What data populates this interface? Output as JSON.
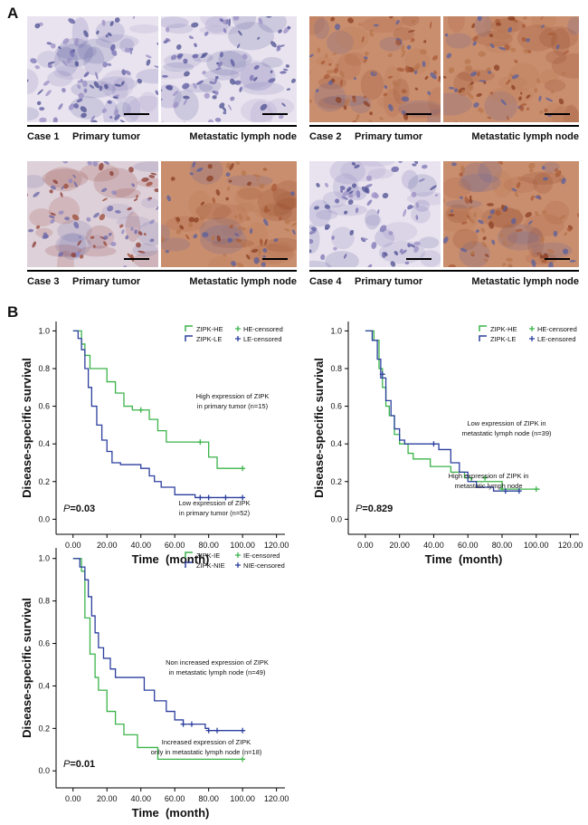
{
  "panel_a": {
    "label": "A",
    "cases": [
      {
        "label": "Case 1",
        "left": "Primary tumor",
        "right": "Metastatic lymph node"
      },
      {
        "label": "Case 2",
        "left": "Primary tumor",
        "right": "Metastatic lymph node"
      },
      {
        "label": "Case 3",
        "left": "Primary tumor",
        "right": "Metastatic lymph node"
      },
      {
        "label": "Case 4",
        "left": "Primary tumor",
        "right": "Metastatic lymph node"
      }
    ]
  },
  "panel_b": {
    "label": "B"
  },
  "chart_data": [
    {
      "type": "step",
      "xlabel": "Time  (month)",
      "ylabel": "Disease-specific survival",
      "xlim": [
        -10,
        125
      ],
      "ylim": [
        -0.08,
        1.05
      ],
      "xticks": [
        {
          "value": 0,
          "label": "0.00"
        },
        {
          "value": 20,
          "label": "20.00"
        },
        {
          "value": 40,
          "label": "40.00"
        },
        {
          "value": 60,
          "label": "60.00"
        },
        {
          "value": 80,
          "label": "80.00"
        },
        {
          "value": 100,
          "label": "100.00"
        },
        {
          "value": 120,
          "label": "120.00"
        }
      ],
      "yticks": [
        {
          "value": 0,
          "label": "0.0"
        },
        0.2,
        0.4,
        0.6,
        0.8,
        {
          "value": 1,
          "label": "1.0"
        }
      ],
      "legend": "upper right",
      "p_symbol": "P",
      "p_text": "=0.03",
      "series": [
        {
          "name": "ZIPK-HE",
          "color": "#3cb44a",
          "x": [
            0,
            5,
            7,
            10,
            20,
            25,
            30,
            35,
            45,
            50,
            55,
            80,
            85,
            100
          ],
          "values": [
            1.0,
            0.93,
            0.87,
            0.8,
            0.73,
            0.67,
            0.6,
            0.58,
            0.53,
            0.47,
            0.41,
            0.33,
            0.27,
            0.27
          ]
        },
        {
          "name": "ZIPK-LE",
          "color": "#2b3f9e",
          "x": [
            0,
            3,
            5,
            7,
            9,
            11,
            14,
            17,
            20,
            23,
            28,
            40,
            45,
            48,
            52,
            60,
            72,
            100
          ],
          "values": [
            1.0,
            0.96,
            0.9,
            0.8,
            0.7,
            0.6,
            0.5,
            0.42,
            0.36,
            0.3,
            0.29,
            0.27,
            0.23,
            0.2,
            0.17,
            0.13,
            0.115,
            0.115
          ]
        }
      ],
      "censored": [
        {
          "name": "HE-censored",
          "color": "#3cb44a",
          "x": [
            40,
            75,
            100
          ],
          "values": [
            0.58,
            0.41,
            0.27
          ]
        },
        {
          "name": "LE-censored",
          "color": "#2b3f9e",
          "x": [
            75,
            80,
            90,
            100
          ],
          "values": [
            0.115,
            0.115,
            0.115,
            0.115
          ]
        }
      ],
      "annotations": [
        {
          "lines": [
            "High expression of ZIPK",
            "in primary tumor (n=15)"
          ]
        },
        {
          "lines": [
            "Low expression of ZIPK",
            "in primary tumor (n=52)"
          ]
        }
      ]
    },
    {
      "type": "step",
      "xlabel": "Time  (month)",
      "ylabel": "Disease-specific survival",
      "xlim": [
        -10,
        125
      ],
      "ylim": [
        -0.08,
        1.05
      ],
      "xticks": [
        {
          "value": 0,
          "label": "0.00"
        },
        {
          "value": 20,
          "label": "20.00"
        },
        {
          "value": 40,
          "label": "40.00"
        },
        {
          "value": 60,
          "label": "60.00"
        },
        {
          "value": 80,
          "label": "80.00"
        },
        {
          "value": 100,
          "label": "100.00"
        },
        {
          "value": 120,
          "label": "120.00"
        }
      ],
      "yticks": [
        {
          "value": 0,
          "label": "0.0"
        },
        0.2,
        0.4,
        0.6,
        0.8,
        {
          "value": 1,
          "label": "1.0"
        }
      ],
      "legend": "upper right",
      "p_symbol": "P",
      "p_text": "=0.829",
      "series": [
        {
          "name": "ZIPK-HE",
          "color": "#3cb44a",
          "x": [
            0,
            5,
            8,
            10,
            12,
            14,
            17,
            20,
            25,
            28,
            38,
            50,
            58,
            62,
            80,
            102
          ],
          "values": [
            1.0,
            0.95,
            0.8,
            0.7,
            0.6,
            0.55,
            0.45,
            0.4,
            0.35,
            0.32,
            0.28,
            0.25,
            0.22,
            0.2,
            0.16,
            0.16
          ]
        },
        {
          "name": "ZIPK-LE",
          "color": "#2b3f9e",
          "x": [
            0,
            4,
            7,
            9,
            12,
            15,
            17,
            20,
            23,
            43,
            50,
            55,
            60,
            65,
            75,
            90
          ],
          "values": [
            1.0,
            0.95,
            0.85,
            0.75,
            0.63,
            0.55,
            0.48,
            0.42,
            0.4,
            0.37,
            0.3,
            0.25,
            0.2,
            0.17,
            0.15,
            0.15
          ]
        }
      ],
      "censored": [
        {
          "name": "HE-censored",
          "color": "#3cb44a",
          "x": [
            70,
            80,
            100
          ],
          "values": [
            0.22,
            0.16,
            0.16
          ]
        },
        {
          "name": "LE-censored",
          "color": "#2b3f9e",
          "x": [
            10,
            40,
            82,
            90
          ],
          "values": [
            0.77,
            0.4,
            0.15,
            0.15
          ]
        }
      ],
      "annotations": [
        {
          "lines": [
            "Low expression of ZIPK in",
            "metastatic lymph node (n=39)"
          ]
        },
        {
          "lines": [
            "High expression of ZIPK in",
            "metastatic lymph node"
          ]
        }
      ]
    },
    {
      "type": "step",
      "xlabel": "Time  (month)",
      "ylabel": "Disease-specific survival",
      "xlim": [
        -10,
        125
      ],
      "ylim": [
        -0.08,
        1.05
      ],
      "xticks": [
        {
          "value": 0,
          "label": "0.00"
        },
        {
          "value": 20,
          "label": "20.00"
        },
        {
          "value": 40,
          "label": "40.00"
        },
        {
          "value": 60,
          "label": "60.00"
        },
        {
          "value": 80,
          "label": "80.00"
        },
        {
          "value": 100,
          "label": "100.00"
        },
        {
          "value": 120,
          "label": "120.00"
        }
      ],
      "yticks": [
        {
          "value": 0,
          "label": "0.0"
        },
        0.2,
        0.4,
        0.6,
        0.8,
        {
          "value": 1,
          "label": "1.0"
        }
      ],
      "legend": "upper right",
      "p_symbol": "P",
      "p_text": "=0.01",
      "series": [
        {
          "name": "ZIPK-IE",
          "color": "#3cb44a",
          "x": [
            0,
            5,
            7,
            10,
            13,
            15,
            20,
            25,
            30,
            38,
            50,
            100
          ],
          "values": [
            1.0,
            0.94,
            0.72,
            0.55,
            0.44,
            0.38,
            0.28,
            0.22,
            0.17,
            0.11,
            0.055,
            0.055
          ]
        },
        {
          "name": "ZIPK-NIE",
          "color": "#2b3f9e",
          "x": [
            0,
            4,
            7,
            9,
            11,
            13,
            15,
            18,
            22,
            25,
            42,
            48,
            55,
            60,
            65,
            78,
            80,
            100
          ],
          "values": [
            1.0,
            0.96,
            0.9,
            0.82,
            0.73,
            0.65,
            0.58,
            0.53,
            0.48,
            0.44,
            0.38,
            0.33,
            0.28,
            0.24,
            0.22,
            0.2,
            0.19,
            0.19
          ]
        }
      ],
      "censored": [
        {
          "name": "IE-censored",
          "color": "#3cb44a",
          "x": [
            100
          ],
          "values": [
            0.055
          ]
        },
        {
          "name": "NIE-censored",
          "color": "#2b3f9e",
          "x": [
            65,
            70,
            80,
            85,
            100
          ],
          "values": [
            0.22,
            0.22,
            0.19,
            0.19,
            0.19
          ]
        }
      ],
      "annotations": [
        {
          "lines": [
            "Non increased expression of ZIPK",
            "in metastatic lymph node (n=49)"
          ]
        },
        {
          "lines": [
            "Increased expression of ZIPK",
            "only in metastatic lymph node (n=18)"
          ]
        }
      ]
    }
  ]
}
